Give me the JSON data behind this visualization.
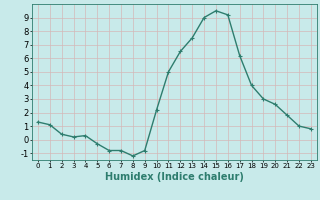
{
  "x": [
    0,
    1,
    2,
    3,
    4,
    5,
    6,
    7,
    8,
    9,
    10,
    11,
    12,
    13,
    14,
    15,
    16,
    17,
    18,
    19,
    20,
    21,
    22,
    23
  ],
  "y": [
    1.3,
    1.1,
    0.4,
    0.2,
    0.3,
    -0.3,
    -0.8,
    -0.8,
    -1.2,
    -0.8,
    2.2,
    5.0,
    6.5,
    7.5,
    9.0,
    9.5,
    9.2,
    6.2,
    4.0,
    3.0,
    2.6,
    1.8,
    1.0,
    0.8
  ],
  "line_color": "#2e7d6e",
  "marker": "+",
  "marker_size": 3,
  "bg_color": "#c8eaea",
  "grid_color": "#d4b8b8",
  "xlabel": "Humidex (Indice chaleur)",
  "xlim": [
    -0.5,
    23.5
  ],
  "ylim": [
    -1.5,
    10.0
  ],
  "yticks": [
    -1,
    0,
    1,
    2,
    3,
    4,
    5,
    6,
    7,
    8,
    9
  ],
  "xticks": [
    0,
    1,
    2,
    3,
    4,
    5,
    6,
    7,
    8,
    9,
    10,
    11,
    12,
    13,
    14,
    15,
    16,
    17,
    18,
    19,
    20,
    21,
    22,
    23
  ],
  "xlabel_fontsize": 7,
  "tick_fontsize": 6,
  "line_width": 1.0
}
